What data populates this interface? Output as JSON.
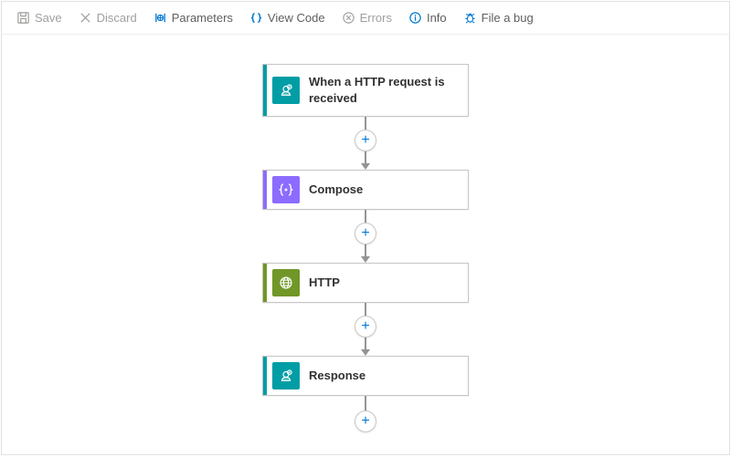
{
  "toolbar": {
    "save_label": "Save",
    "discard_label": "Discard",
    "parameters_label": "Parameters",
    "view_code_label": "View Code",
    "errors_label": "Errors",
    "info_label": "Info",
    "file_bug_label": "File a bug"
  },
  "flow": {
    "add_step_symbol": "+",
    "nodes": [
      {
        "label": "When a HTTP request is received",
        "accent_color": "#009da5",
        "icon_bg": "#009da5",
        "icon_type": "request",
        "tall": true
      },
      {
        "label": "Compose",
        "accent_color": "#8c6cff",
        "icon_bg": "#8c6cff",
        "icon_type": "compose",
        "tall": false
      },
      {
        "label": "HTTP",
        "accent_color": "#709727",
        "icon_bg": "#709727",
        "icon_type": "http",
        "tall": false
      },
      {
        "label": "Response",
        "accent_color": "#009da5",
        "icon_bg": "#009da5",
        "icon_type": "request",
        "tall": false
      }
    ],
    "connector_color": "#949494",
    "plus_border": "#c8c6c4",
    "plus_text_color": "#0078d4"
  },
  "colors": {
    "toolbar_blue": "#0078d4",
    "toolbar_grey": "#605e5c",
    "toolbar_disabled": "#a19f9d",
    "node_border": "#c8c6c4",
    "text": "#323130"
  }
}
